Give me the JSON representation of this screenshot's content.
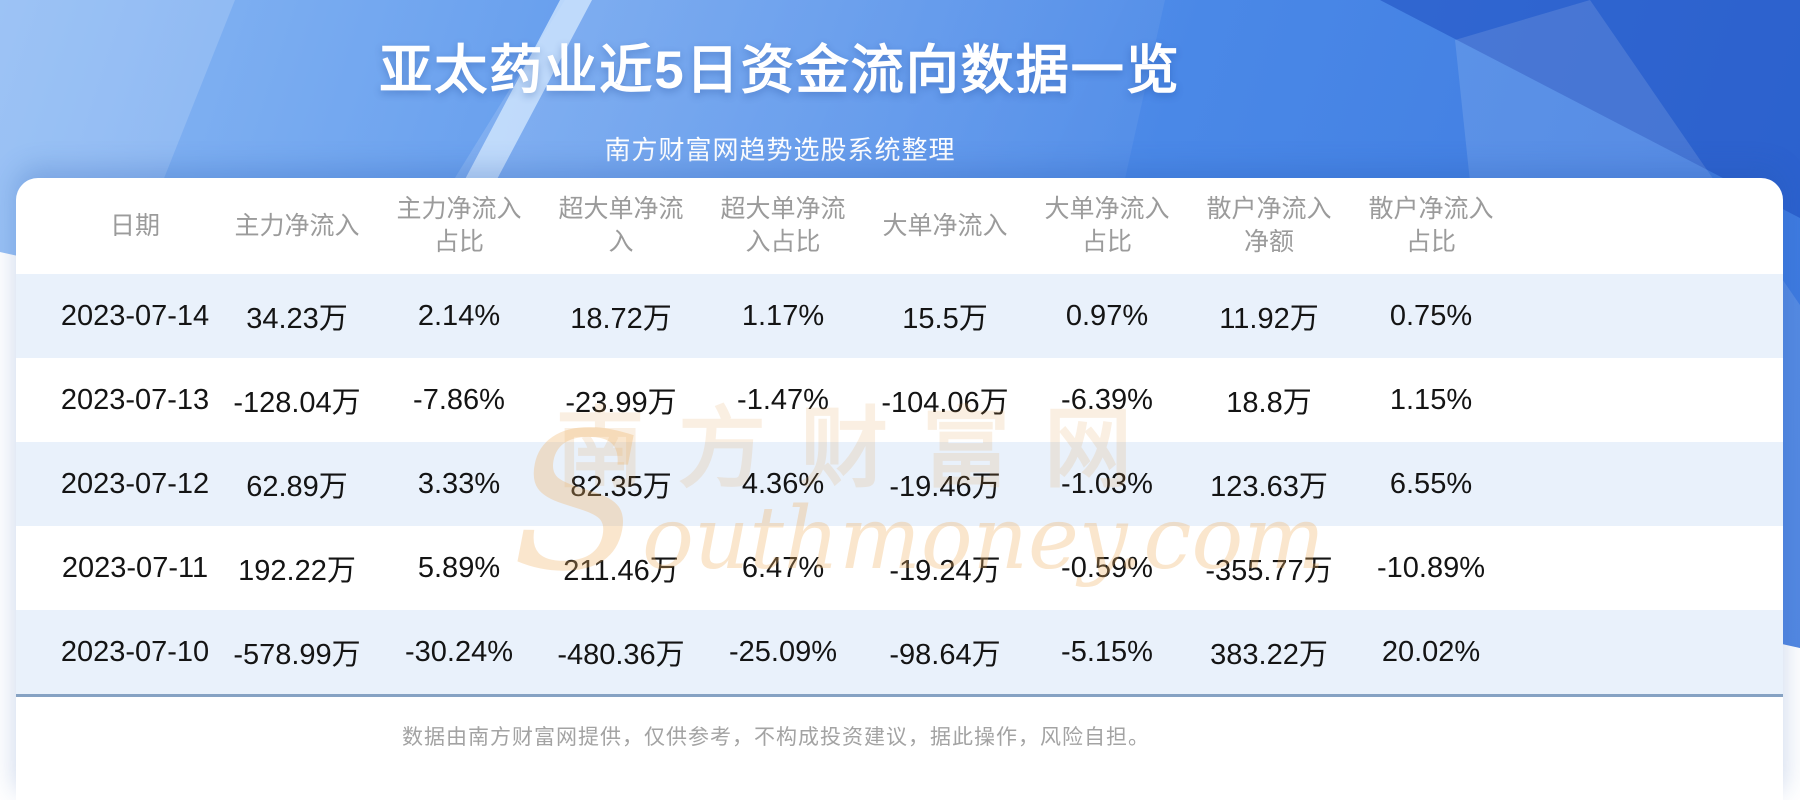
{
  "page": {
    "title": "亚太药业近5日资金流向数据一览",
    "subtitle": "南方财富网趋势选股系统整理"
  },
  "chart_data": {
    "type": "table",
    "title": "亚太药业近5日资金流向数据一览",
    "columns": [
      "日期",
      "主力净流入",
      "主力净流入占比",
      "超大单净流入",
      "超大单净流入占比",
      "大单净流入",
      "大单净流入占比",
      "散户净流入净额",
      "散户净流入占比"
    ],
    "rows": [
      [
        "2023-07-14",
        "34.23万",
        "2.14%",
        "18.72万",
        "1.17%",
        "15.5万",
        "0.97%",
        "11.92万",
        "0.75%"
      ],
      [
        "2023-07-13",
        "-128.04万",
        "-7.86%",
        "-23.99万",
        "-1.47%",
        "-104.06万",
        "-6.39%",
        "18.8万",
        "1.15%"
      ],
      [
        "2023-07-12",
        "62.89万",
        "3.33%",
        "82.35万",
        "4.36%",
        "-19.46万",
        "-1.03%",
        "123.63万",
        "6.55%"
      ],
      [
        "2023-07-11",
        "192.22万",
        "5.89%",
        "211.46万",
        "6.47%",
        "-19.24万",
        "-0.59%",
        "-355.77万",
        "-10.89%"
      ],
      [
        "2023-07-10",
        "-578.99万",
        "-30.24%",
        "-480.36万",
        "-25.09%",
        "-98.64万",
        "-5.15%",
        "383.22万",
        "20.02%"
      ]
    ]
  },
  "watermark": {
    "cn": "南方财富网",
    "en_initial": "S",
    "en_rest": "outhmoney.com"
  },
  "footer": {
    "disclaimer": "数据由南方财富网提供，仅供参考，不构成投资建议，据此操作，风险自担。"
  },
  "colors": {
    "banner_light": "#8AB8F3",
    "banner_deep": "#3C78DE",
    "stripe": "#E9F1FB",
    "divider": "#86A2C3",
    "header_text": "#9B9B9B",
    "data_text": "#141414",
    "footer_text": "#A3A3A3"
  }
}
